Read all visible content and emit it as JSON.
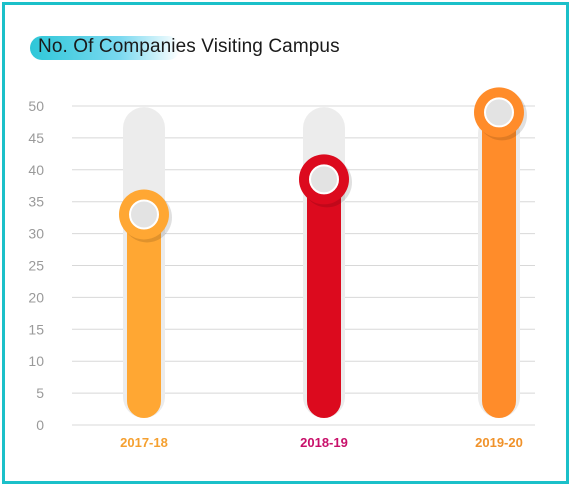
{
  "chart_data": {
    "type": "bar",
    "title": "No. Of Companies Visiting Campus",
    "categories": [
      "2017-18",
      "2018-19",
      "2019-20"
    ],
    "values": [
      33,
      38.5,
      49
    ],
    "track_max": 47,
    "ylim": [
      0,
      50
    ],
    "yticks": [
      "0",
      "5",
      "10",
      "15",
      "20",
      "25",
      "30",
      "35",
      "40",
      "45",
      "50"
    ],
    "grid": true,
    "colors": {
      "bars": [
        "#ffa733",
        "#dc0a1e",
        "#ff8c2a"
      ],
      "labels": [
        "#f5a030",
        "#c8106a",
        "#f0922a"
      ],
      "track": "#ececec",
      "grid": "#d8d8d8",
      "knob_inner": "#e3e3e3"
    }
  }
}
